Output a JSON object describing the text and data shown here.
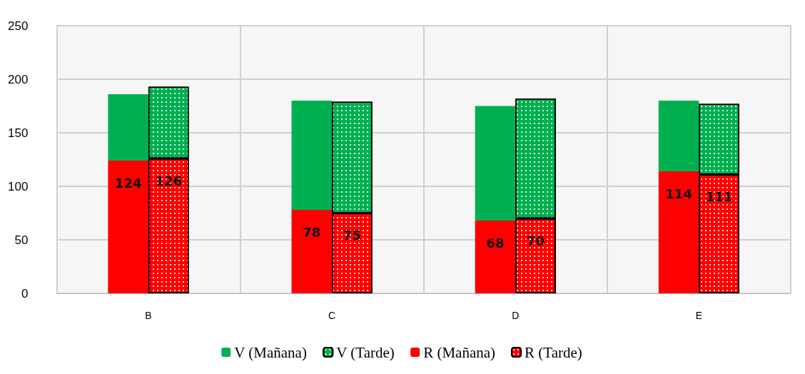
{
  "chart_data": {
    "type": "bar",
    "categories": [
      "B",
      "C",
      "D",
      "E"
    ],
    "ylim": [
      0,
      250
    ],
    "yticks": [
      0,
      50,
      100,
      150,
      200,
      250
    ],
    "grid": true,
    "legend": "bottom",
    "series": [
      {
        "name": "V (Mañana)",
        "color": "#00b050",
        "base": [
          124,
          78,
          68,
          114
        ],
        "values": [
          62,
          102,
          107,
          66
        ]
      },
      {
        "name": "V (Tarde)",
        "color": "#00b050",
        "base": [
          126,
          75,
          70,
          111
        ],
        "values": [
          67,
          104,
          112,
          66
        ]
      },
      {
        "name": "R (Mañana)",
        "color": "#ff0000",
        "values": [
          124,
          78,
          68,
          114
        ],
        "value_labels": [
          "124",
          "78",
          "68",
          "114"
        ]
      },
      {
        "name": "R (Tarde)",
        "color": "#ff0000",
        "values": [
          126,
          75,
          70,
          111
        ],
        "value_labels": [
          "126",
          "75",
          "70",
          "111"
        ]
      }
    ]
  }
}
